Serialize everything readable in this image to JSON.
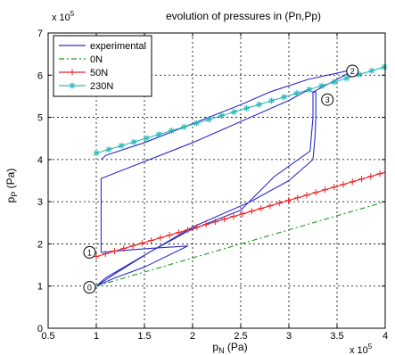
{
  "chart_data": {
    "type": "line",
    "title": "evolution of pressures in (Pn,Pp)",
    "xlabel_main": "p",
    "xlabel_sub": "N",
    "xlabel_unit": " (Pa)",
    "ylabel_main": "p",
    "ylabel_sub": "P",
    "ylabel_unit": " (Pa)",
    "x_exponent": "x 10",
    "x_exponent_power": "5",
    "y_exponent": "x 10",
    "y_exponent_power": "5",
    "xlim": [
      0.5,
      4
    ],
    "ylim": [
      0,
      7
    ],
    "x_ticks": [
      "0.5",
      "1",
      "1.5",
      "2",
      "2.5",
      "3",
      "3.5",
      "4"
    ],
    "y_ticks": [
      "0",
      "1",
      "2",
      "3",
      "4",
      "5",
      "6",
      "7"
    ],
    "grid": true,
    "legend_position": "top-left",
    "series": [
      {
        "name": "experimental",
        "style": "solid",
        "color": "#2b2bcc",
        "x": [
          1.0,
          1.1,
          1.4,
          1.7,
          2.0,
          2.4,
          2.6,
          3.0,
          3.25,
          3.27,
          3.28,
          3.28,
          3.25,
          3.2,
          3.0,
          2.8,
          2.5,
          2.0,
          1.05,
          1.05,
          1.05,
          1.3,
          1.6,
          1.95,
          1.5,
          1.2,
          1.0,
          1.2,
          1.55,
          1.95,
          2.5,
          2.85,
          3.22,
          3.25,
          3.25,
          3.62,
          3.6,
          3.2,
          2.8,
          2.5,
          1.5,
          1.1,
          1.05
        ],
        "y": [
          1.0,
          1.2,
          1.6,
          2.0,
          2.4,
          2.8,
          3.0,
          3.5,
          4.0,
          4.5,
          5.0,
          5.6,
          5.6,
          5.65,
          5.4,
          5.2,
          4.9,
          4.4,
          3.55,
          2.5,
          1.8,
          1.85,
          1.9,
          1.95,
          1.45,
          1.2,
          1.0,
          1.3,
          1.8,
          2.3,
          2.8,
          3.6,
          4.2,
          5.0,
          5.6,
          6.05,
          6.1,
          5.9,
          5.6,
          5.3,
          4.4,
          4.1,
          4.0
        ]
      },
      {
        "name": "0N",
        "style": "dash-dot",
        "color": "#1a9a1a",
        "x": [
          1.0,
          4.0
        ],
        "y": [
          1.0,
          3.0
        ]
      },
      {
        "name": "50N",
        "style": "plus",
        "color": "#ee2222",
        "x": [
          1.0,
          4.0
        ],
        "y": [
          1.7,
          3.7
        ]
      },
      {
        "name": "230N",
        "style": "star",
        "color": "#2ab8b8",
        "x": [
          1.0,
          4.0
        ],
        "y": [
          4.15,
          6.2
        ]
      }
    ],
    "annotations": [
      {
        "label": "0",
        "x": 0.93,
        "y": 0.97
      },
      {
        "label": "1",
        "x": 0.93,
        "y": 1.8
      },
      {
        "label": "2",
        "x": 3.66,
        "y": 6.1
      },
      {
        "label": "3",
        "x": 3.4,
        "y": 5.42
      }
    ]
  }
}
